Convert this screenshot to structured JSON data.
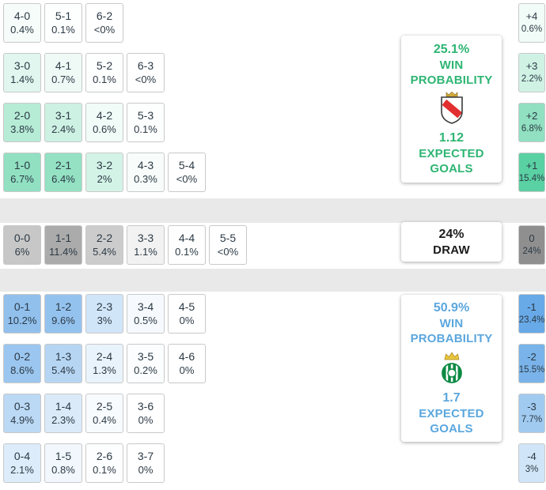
{
  "colors": {
    "home_accent": "#2eb573",
    "draw_accent": "#1b1b1b",
    "away_accent": "#5ba7de"
  },
  "chart_data": {
    "type": "heatmap",
    "home": {
      "card": {
        "probability": "25.1%",
        "win_line1": "WIN",
        "win_line2": "PROBABILITY",
        "crest": "rayo-vallecano-crest",
        "expected": "1.12",
        "exp_line1": "EXPECTED",
        "exp_line2": "GOALS"
      },
      "rows": [
        [
          [
            "4-0",
            "0.4%"
          ],
          [
            "5-1",
            "0.1%"
          ],
          [
            "6-2",
            "<0%"
          ]
        ],
        [
          [
            "3-0",
            "1.4%"
          ],
          [
            "4-1",
            "0.7%"
          ],
          [
            "5-2",
            "0.1%"
          ],
          [
            "6-3",
            "<0%"
          ]
        ],
        [
          [
            "2-0",
            "3.8%"
          ],
          [
            "3-1",
            "2.4%"
          ],
          [
            "4-2",
            "0.6%"
          ],
          [
            "5-3",
            "0.1%"
          ]
        ],
        [
          [
            "1-0",
            "6.7%"
          ],
          [
            "2-1",
            "6.4%"
          ],
          [
            "3-2",
            "2%"
          ],
          [
            "4-3",
            "0.3%"
          ],
          [
            "5-4",
            "<0%"
          ]
        ]
      ],
      "margins": [
        [
          "+4",
          "0.6%"
        ],
        [
          "+3",
          "2.2%"
        ],
        [
          "+2",
          "6.8%"
        ],
        [
          "+1",
          "15.4%"
        ]
      ]
    },
    "draw": {
      "card": {
        "probability": "24%",
        "label": "DRAW"
      },
      "rows": [
        [
          [
            "0-0",
            "6%"
          ],
          [
            "1-1",
            "11.4%"
          ],
          [
            "2-2",
            "5.4%"
          ],
          [
            "3-3",
            "1.1%"
          ],
          [
            "4-4",
            "0.1%"
          ],
          [
            "5-5",
            "<0%"
          ]
        ]
      ],
      "margins": [
        [
          "0",
          "24%"
        ]
      ]
    },
    "away": {
      "card": {
        "probability": "50.9%",
        "win_line1": "WIN",
        "win_line2": "PROBABILITY",
        "crest": "real-betis-crest",
        "expected": "1.7",
        "exp_line1": "EXPECTED",
        "exp_line2": "GOALS"
      },
      "rows": [
        [
          [
            "0-1",
            "10.2%"
          ],
          [
            "1-2",
            "9.6%"
          ],
          [
            "2-3",
            "3%"
          ],
          [
            "3-4",
            "0.5%"
          ],
          [
            "4-5",
            "0%"
          ]
        ],
        [
          [
            "0-2",
            "8.6%"
          ],
          [
            "1-3",
            "5.4%"
          ],
          [
            "2-4",
            "1.3%"
          ],
          [
            "3-5",
            "0.2%"
          ],
          [
            "4-6",
            "0%"
          ]
        ],
        [
          [
            "0-3",
            "4.9%"
          ],
          [
            "1-4",
            "2.3%"
          ],
          [
            "2-5",
            "0.4%"
          ],
          [
            "3-6",
            "0%"
          ]
        ],
        [
          [
            "0-4",
            "2.1%"
          ],
          [
            "1-5",
            "0.8%"
          ],
          [
            "2-6",
            "0.1%"
          ],
          [
            "3-7",
            "0%"
          ]
        ]
      ],
      "margins": [
        [
          "-1",
          "23.4%"
        ],
        [
          "-2",
          "15.5%"
        ],
        [
          "-3",
          "7.7%"
        ],
        [
          "-4",
          "3%"
        ]
      ]
    }
  }
}
